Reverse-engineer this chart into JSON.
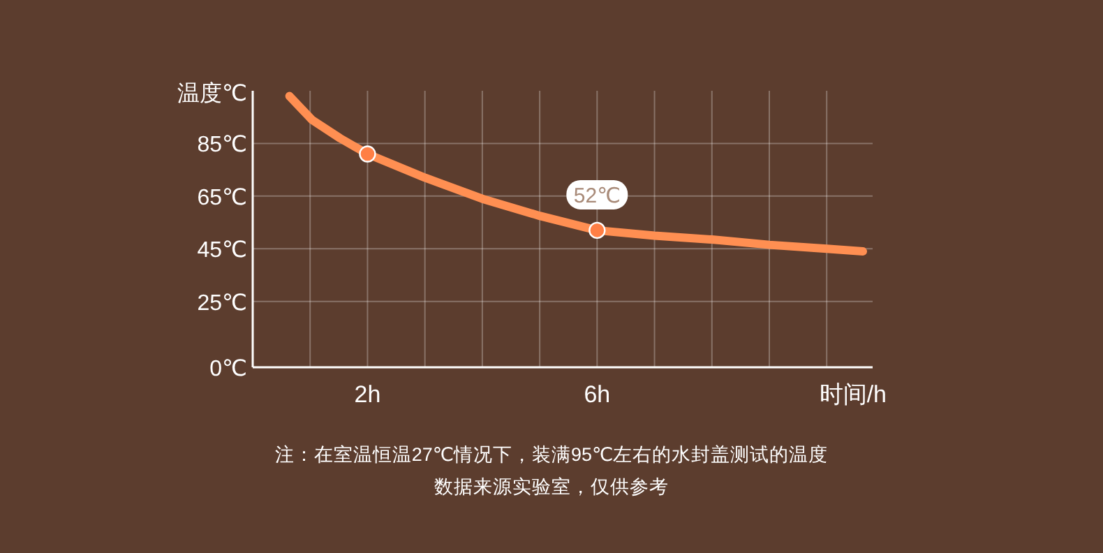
{
  "chart_data": {
    "type": "line",
    "ylabel": "温度℃",
    "xlabel": "时间/h",
    "xlim": [
      0,
      10.8
    ],
    "xticks": [
      {
        "value": 1,
        "label": null
      },
      {
        "value": 2,
        "label": "2h"
      },
      {
        "value": 3,
        "label": null
      },
      {
        "value": 4,
        "label": null
      },
      {
        "value": 5,
        "label": null
      },
      {
        "value": 6,
        "label": "6h"
      },
      {
        "value": 7,
        "label": null
      },
      {
        "value": 8,
        "label": null
      },
      {
        "value": 9,
        "label": null
      },
      {
        "value": 10,
        "label": null
      }
    ],
    "ylim": [
      0,
      105
    ],
    "yticks": [
      {
        "value": 0,
        "label": "0℃"
      },
      {
        "value": 25,
        "label": "25℃"
      },
      {
        "value": 45,
        "label": "45℃"
      },
      {
        "value": 65,
        "label": "65℃"
      },
      {
        "value": 85,
        "label": "85℃"
      }
    ],
    "grid": true,
    "series": [
      {
        "type": "line",
        "color": "#ff8f52",
        "line_style": "solid",
        "x": [
          0.64,
          1.03,
          1.52,
          2,
          3,
          4,
          5,
          6,
          7,
          8,
          9,
          10,
          10.63
        ],
        "values": [
          103,
          94,
          87,
          81,
          72,
          64,
          57.5,
          52,
          50,
          48.5,
          46.5,
          45,
          44
        ]
      },
      {
        "type": "scatter",
        "color": "#ff7f45",
        "marker": "circle",
        "x": [
          2,
          6
        ],
        "values": [
          81,
          52
        ],
        "value_labels": [
          null,
          "52℃"
        ]
      }
    ],
    "annotations": [
      "注：在室温恒温27℃情况下，装满95℃左右的水封盖测试的温度",
      "数据来源实验室，仅供参考"
    ]
  }
}
